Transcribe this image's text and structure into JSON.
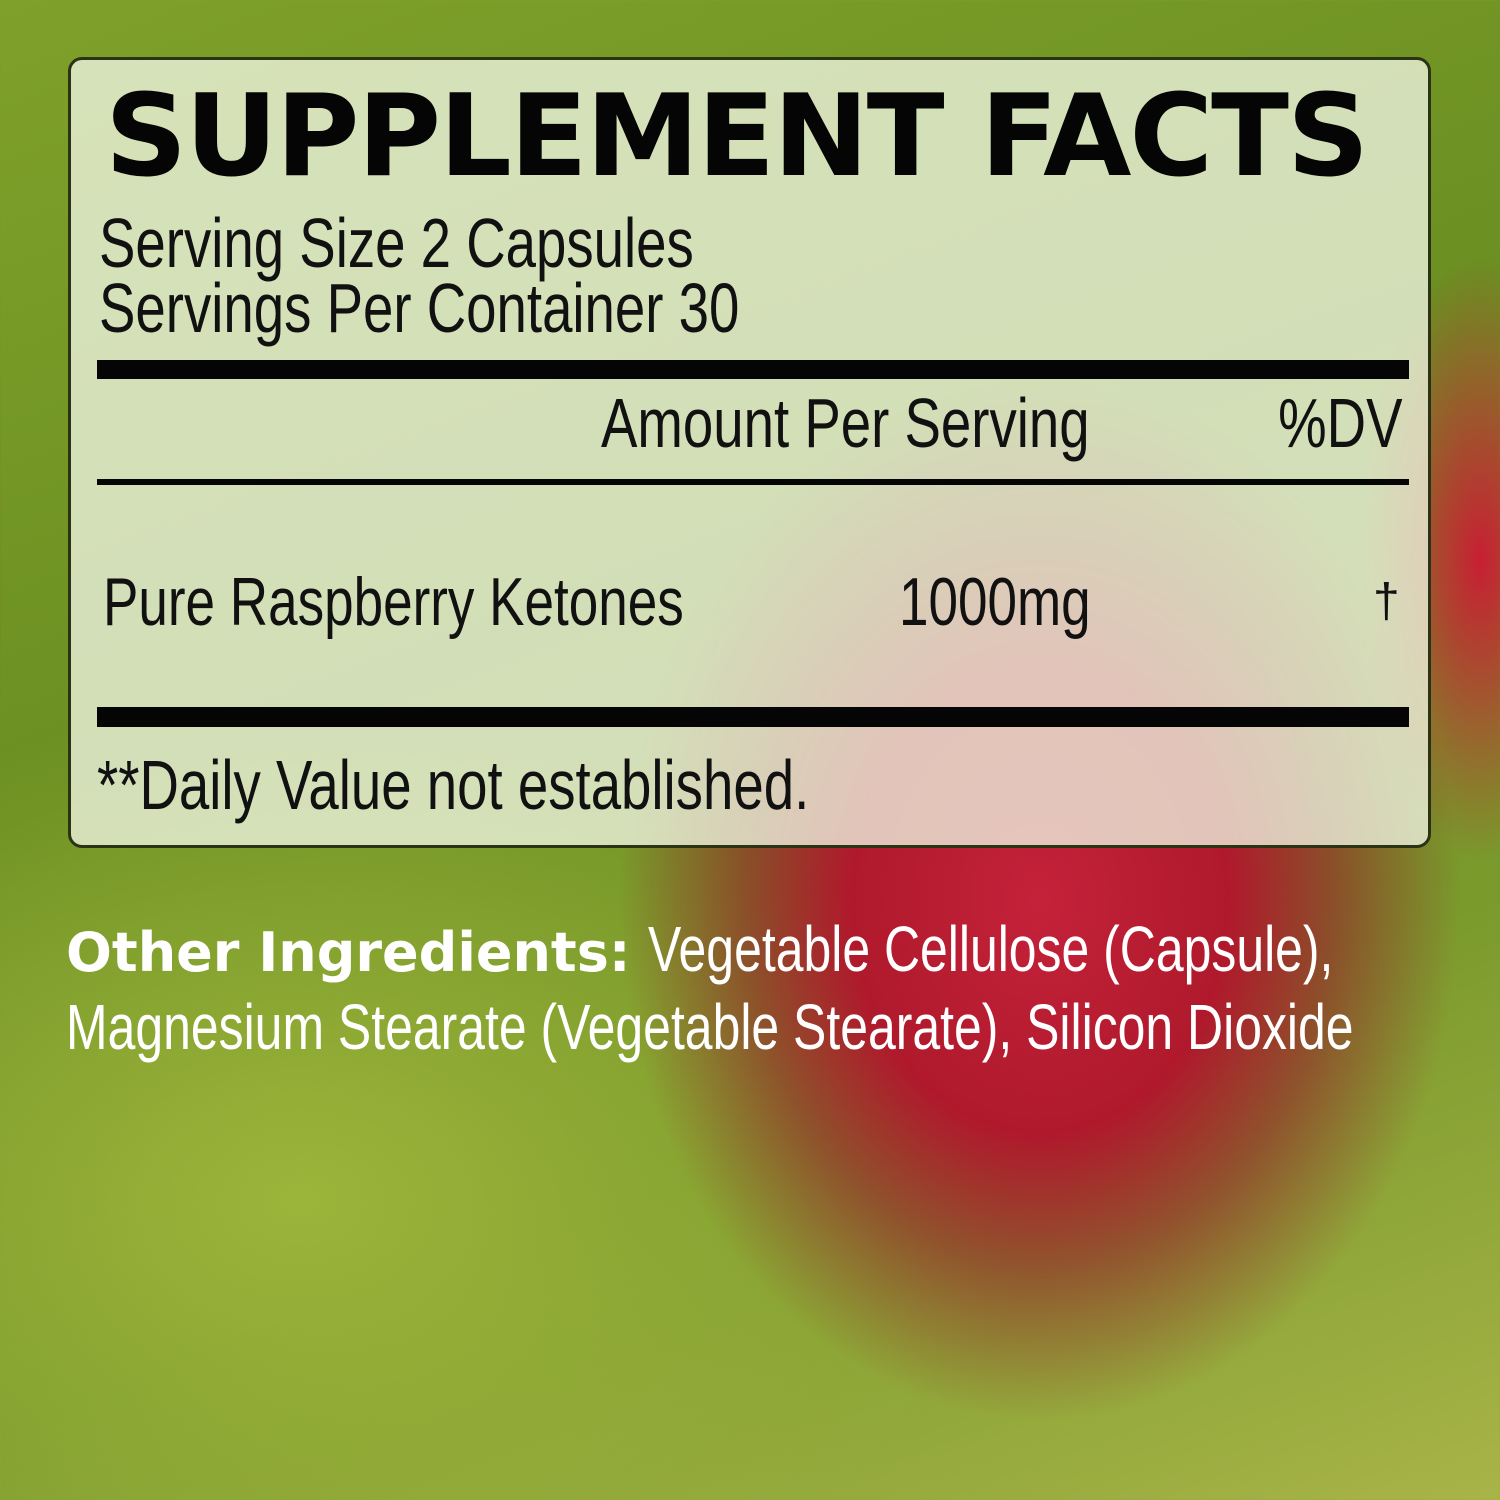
{
  "title": "SUPPLEMENT FACTS",
  "serving_size": "Serving Size 2 Capsules",
  "servings_per_container": "Servings Per Container 30",
  "header": {
    "amount": "Amount Per Serving",
    "dv": "%DV"
  },
  "ingredients": [
    {
      "name": "Pure Raspberry Ketones",
      "amount": "1000mg",
      "dv": "†"
    }
  ],
  "footnote": "**Daily Value not established.",
  "other_ingredients": {
    "label": "Other Ingredients:",
    "line1": "Vegetable Cellulose (Capsule),",
    "line2": "Magnesium Stearate (Vegetable Stearate), Silicon Dioxide"
  },
  "colors": {
    "panel_border": "#2a3414",
    "text": "#050505",
    "background_green": "#7fa12a",
    "raspberry_red": "#b0192c"
  }
}
